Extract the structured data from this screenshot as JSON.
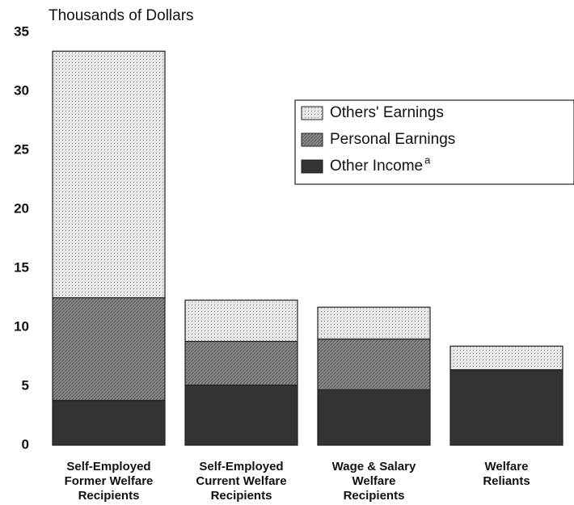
{
  "chart_data": {
    "type": "stacked_bar",
    "axis_label": "Thousands of Dollars",
    "categories": [
      [
        "Self-Employed",
        "Former Welfare",
        "Recipients"
      ],
      [
        "Self-Employed",
        "Current Welfare",
        "Recipients"
      ],
      [
        "Wage & Salary",
        "Welfare",
        "Recipients"
      ],
      [
        "Welfare",
        "Reliants"
      ]
    ],
    "series": [
      {
        "name": "Others' Earnings",
        "color": "#e6e6e6",
        "pattern": "dots",
        "values": [
          20.9,
          3.5,
          2.7,
          2.0
        ]
      },
      {
        "name": "Personal Earnings",
        "color": "#8a8a8a",
        "pattern": "hatch",
        "values": [
          8.7,
          3.7,
          4.3,
          0
        ]
      },
      {
        "name": "Other Income",
        "note_marker": "a",
        "color": "#333333",
        "pattern": "solid",
        "values": [
          3.8,
          5.1,
          4.7,
          6.4
        ]
      }
    ],
    "ylim": [
      0,
      35
    ],
    "yticks": [
      0,
      5,
      10,
      15,
      20,
      25,
      30,
      35
    ],
    "grid": false,
    "legend": "upper right"
  }
}
